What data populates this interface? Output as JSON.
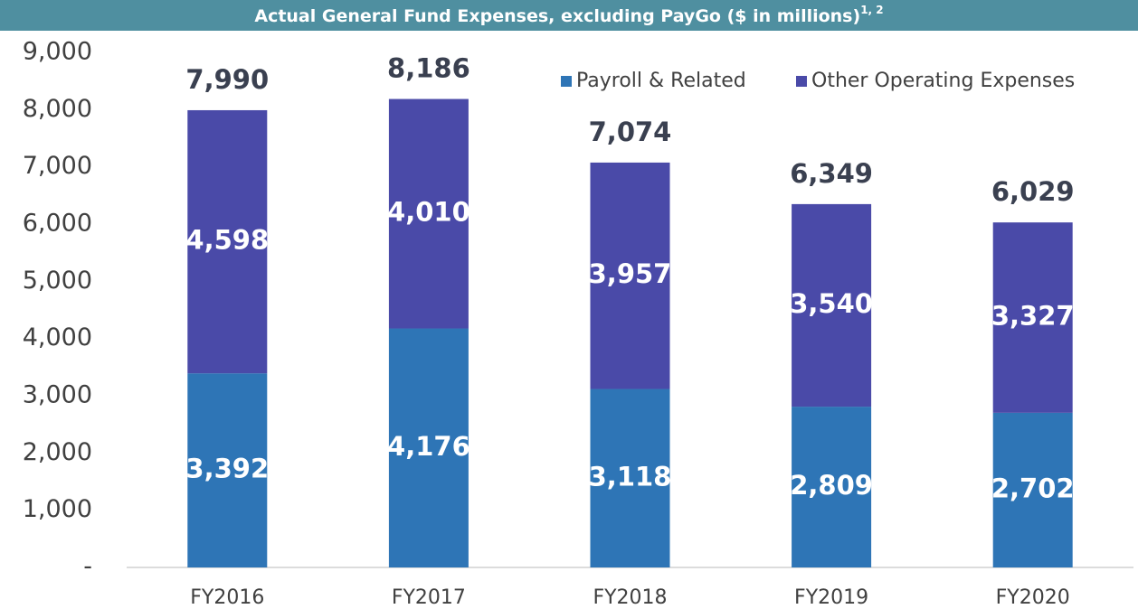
{
  "chart_data": {
    "type": "stacked_bar",
    "title": "Actual General Fund Expenses, excluding PayGo ($ in millions)",
    "title_superscript": "1, 2",
    "categories": [
      "FY2016",
      "FY2017",
      "FY2018",
      "FY2019",
      "FY2020"
    ],
    "series": [
      {
        "name": "Payroll & Related",
        "color": "#2e75b6",
        "values": [
          3392,
          4176,
          3118,
          2809,
          2702
        ],
        "value_labels": [
          "3,392",
          "4,176",
          "3,118",
          "2,809",
          "2,702"
        ]
      },
      {
        "name": "Other Operating Expenses",
        "color": "#4a4aa8",
        "values": [
          4598,
          4010,
          3957,
          3540,
          3327
        ],
        "value_labels": [
          "4,598",
          "4,010",
          "3,957",
          "3,540",
          "3,327"
        ]
      }
    ],
    "totals": [
      7990,
      8186,
      7074,
      6349,
      6029
    ],
    "total_labels": [
      "7,990",
      "8,186",
      "7,074",
      "6,349",
      "6,029"
    ],
    "ylim": [
      0,
      9000
    ],
    "yticks": [
      {
        "value": 0,
        "label": "-"
      },
      {
        "value": 1000,
        "label": "1,000"
      },
      {
        "value": 2000,
        "label": "2,000"
      },
      {
        "value": 3000,
        "label": "3,000"
      },
      {
        "value": 4000,
        "label": "4,000"
      },
      {
        "value": 5000,
        "label": "5,000"
      },
      {
        "value": 6000,
        "label": "6,000"
      },
      {
        "value": 7000,
        "label": "7,000"
      },
      {
        "value": 8000,
        "label": "8,000"
      },
      {
        "value": 9000,
        "label": "9,000"
      }
    ],
    "grid": false,
    "legend": "top-right"
  }
}
